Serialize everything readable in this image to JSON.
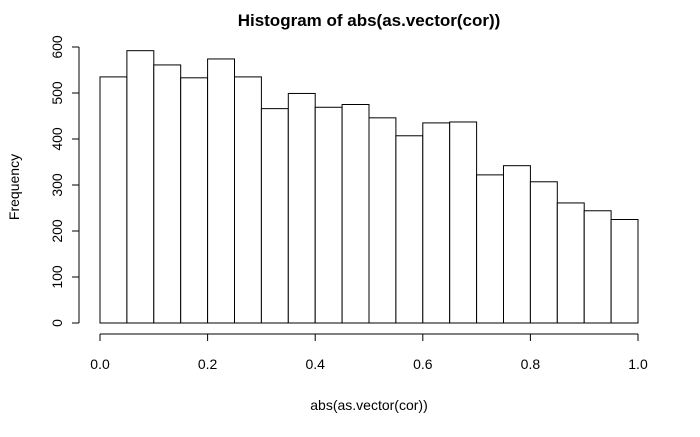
{
  "chart_data": {
    "type": "bar",
    "subtype": "histogram",
    "title": "Histogram of abs(as.vector(cor))",
    "xlabel": "abs(as.vector(cor))",
    "ylabel": "Frequency",
    "xlim": [
      0,
      1
    ],
    "ylim": [
      0,
      600
    ],
    "bin_edges": [
      0.0,
      0.05,
      0.1,
      0.15,
      0.2,
      0.25,
      0.3,
      0.35,
      0.4,
      0.45,
      0.5,
      0.55,
      0.6,
      0.65,
      0.7,
      0.75,
      0.8,
      0.85,
      0.9,
      0.95,
      1.0
    ],
    "values": [
      535,
      592,
      561,
      533,
      574,
      535,
      466,
      499,
      469,
      475,
      446,
      407,
      435,
      437,
      322,
      342,
      307,
      261,
      244,
      225
    ],
    "x_ticks": [
      {
        "value": 0.0,
        "label": "0.0"
      },
      {
        "value": 0.2,
        "label": "0.2"
      },
      {
        "value": 0.4,
        "label": "0.4"
      },
      {
        "value": 0.6,
        "label": "0.6"
      },
      {
        "value": 0.8,
        "label": "0.8"
      },
      {
        "value": 1.0,
        "label": "1.0"
      }
    ],
    "y_ticks": [
      {
        "value": 0,
        "label": "0"
      },
      {
        "value": 100,
        "label": "100"
      },
      {
        "value": 200,
        "label": "200"
      },
      {
        "value": 300,
        "label": "300"
      },
      {
        "value": 400,
        "label": "400"
      },
      {
        "value": 500,
        "label": "500"
      },
      {
        "value": 600,
        "label": "600"
      }
    ],
    "grid": false,
    "colors": {
      "bar_fill": "#ffffff",
      "bar_stroke": "#000000",
      "axis": "#000000"
    }
  }
}
